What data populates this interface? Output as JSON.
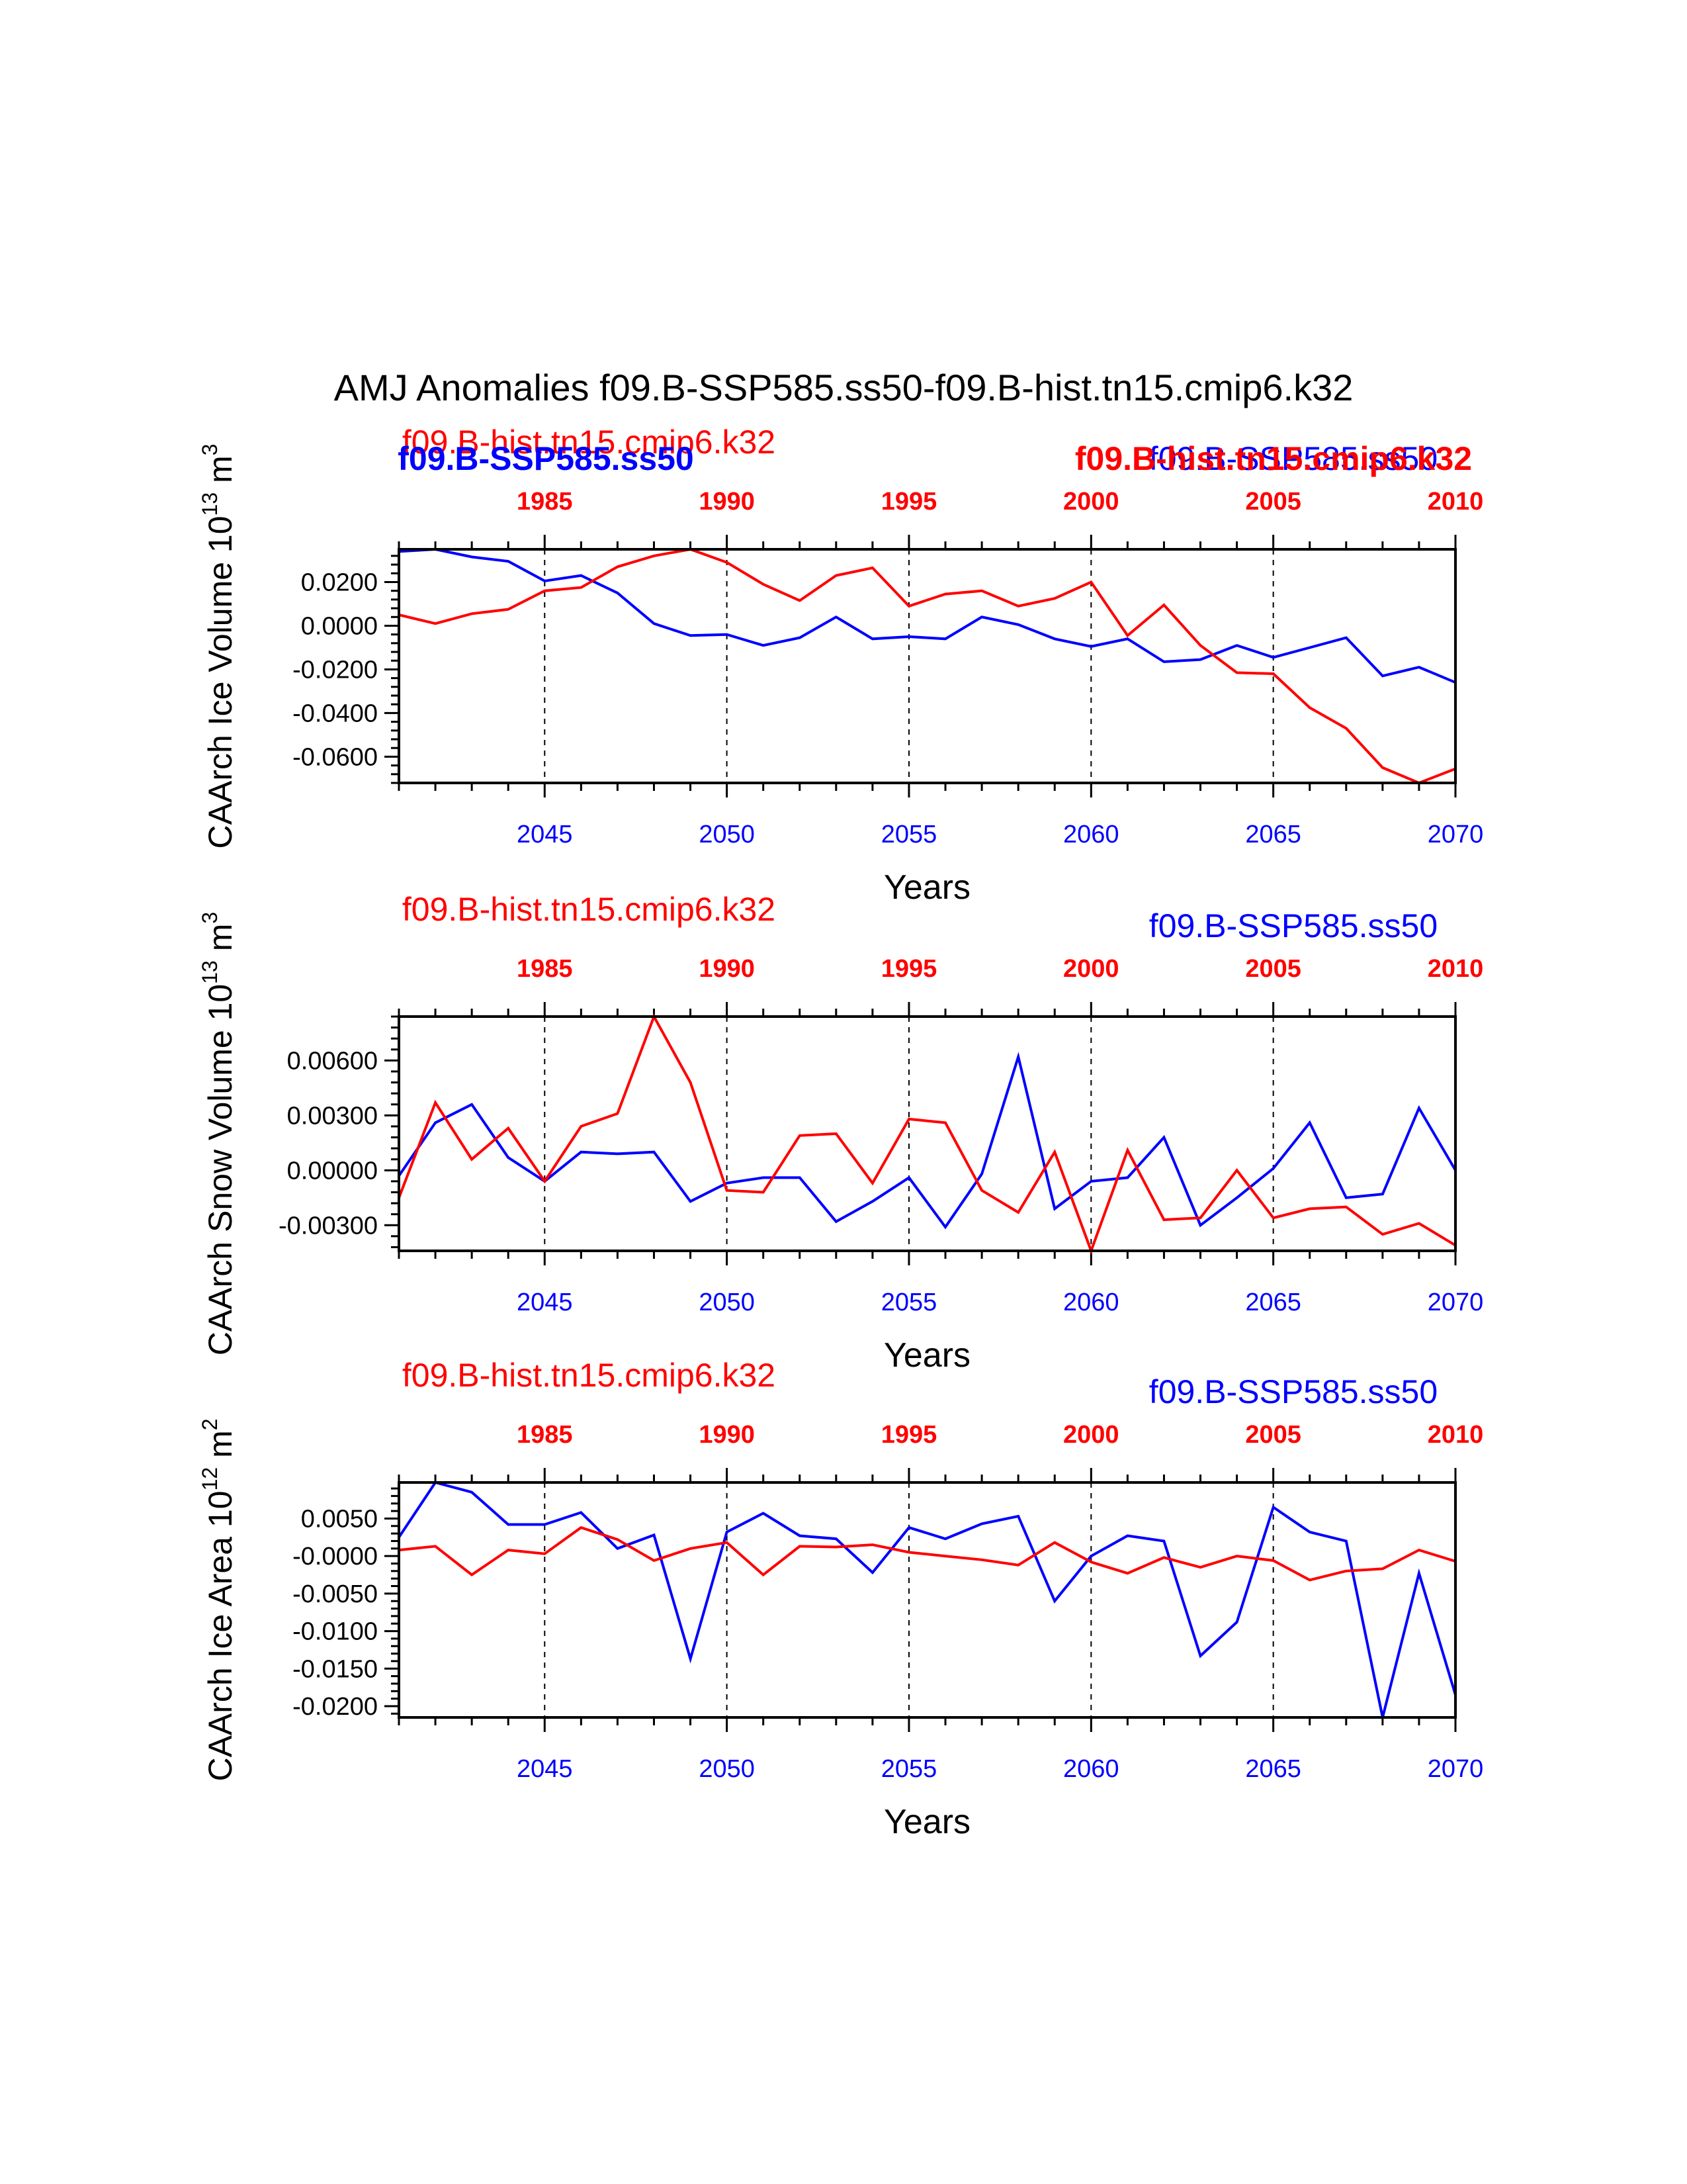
{
  "figure": {
    "title": "AMJ Anomalies f09.B-SSP585.ss50-f09.B-hist.tn15.cmip6.k32"
  },
  "colors": {
    "ssp": "#0000ff",
    "hist": "#ff0000",
    "frame": "#000000"
  },
  "chart_data": [
    {
      "type": "line",
      "ylabel": "CAArch Ice Volume 10^13 m^3",
      "ylabel_main": "CAArch Ice Volume 10",
      "ylabel_exp": "13",
      "ylabel_unit": " m",
      "ylabel_unit_exp": "3",
      "xlabel": "Years",
      "bottom_ticks": [
        "2045",
        "2050",
        "2055",
        "2060",
        "2065",
        "2070"
      ],
      "bottom_tick_values": [
        2045,
        2050,
        2055,
        2060,
        2065,
        2070
      ],
      "top_ticks": [
        "1985",
        "1990",
        "1995",
        "2000",
        "2005",
        "2010"
      ],
      "top_tick_values": [
        1985,
        1990,
        1995,
        2000,
        2005,
        2010
      ],
      "yticks": [
        "0.0200",
        "0.0000",
        "-0.0200",
        "-0.0400",
        "-0.0600"
      ],
      "ytick_values": [
        0.02,
        0.0,
        -0.02,
        -0.04,
        -0.06
      ],
      "ylim": [
        -0.072,
        0.035
      ],
      "xlim_bottom": [
        2041,
        2070
      ],
      "xlim_top": [
        1981,
        2010
      ],
      "label_hist": "f09.B-hist.tn15.cmip6.k32",
      "label_ssp": "f09.B-SSP585.ss50",
      "label_ssp_bold": "f09.B-SSP585.ss50",
      "label_hist_bold": "f09.B-hist.tn15.cmip6.k32",
      "series": [
        {
          "name": "f09.B-SSP585.ss50",
          "color": "#0000ff",
          "x": [
            2041,
            2042,
            2043,
            2044,
            2045,
            2046,
            2047,
            2048,
            2049,
            2050,
            2051,
            2052,
            2053,
            2054,
            2055,
            2056,
            2057,
            2058,
            2059,
            2060,
            2061,
            2062,
            2063,
            2064,
            2065,
            2066,
            2067,
            2068,
            2069,
            2070
          ],
          "y": [
            0.034,
            0.035,
            0.0315,
            0.0295,
            0.0205,
            0.023,
            0.015,
            0.001,
            -0.0045,
            -0.004,
            -0.009,
            -0.0055,
            0.004,
            -0.006,
            -0.005,
            -0.006,
            0.004,
            0.0005,
            -0.006,
            -0.0095,
            -0.006,
            -0.0165,
            -0.0155,
            -0.009,
            -0.0145,
            -0.01,
            -0.0055,
            -0.023,
            -0.019,
            -0.026
          ]
        },
        {
          "name": "f09.B-hist.tn15.cmip6.k32",
          "color": "#ff0000",
          "x": [
            1981,
            1982,
            1983,
            1984,
            1985,
            1986,
            1987,
            1988,
            1989,
            1990,
            1991,
            1992,
            1993,
            1994,
            1995,
            1996,
            1997,
            1998,
            1999,
            2000,
            2001,
            2002,
            2003,
            2004,
            2005,
            2006,
            2007,
            2008,
            2009,
            2010
          ],
          "y": [
            0.005,
            0.001,
            0.0055,
            0.0075,
            0.016,
            0.0175,
            0.027,
            0.032,
            0.035,
            0.029,
            0.019,
            0.0115,
            0.023,
            0.0265,
            0.009,
            0.0145,
            0.016,
            0.009,
            0.0125,
            0.02,
            -0.0045,
            0.0095,
            -0.009,
            -0.0215,
            -0.022,
            -0.0375,
            -0.047,
            -0.065,
            -0.072,
            -0.0655
          ]
        }
      ]
    },
    {
      "type": "line",
      "ylabel": "CAArch Snow Volume 10^13 m^3",
      "ylabel_main": "CAArch Snow Volume 10",
      "ylabel_exp": "13",
      "ylabel_unit": " m",
      "ylabel_unit_exp": "3",
      "xlabel": "Years",
      "bottom_ticks": [
        "2045",
        "2050",
        "2055",
        "2060",
        "2065",
        "2070"
      ],
      "bottom_tick_values": [
        2045,
        2050,
        2055,
        2060,
        2065,
        2070
      ],
      "top_ticks": [
        "1985",
        "1990",
        "1995",
        "2000",
        "2005",
        "2010"
      ],
      "top_tick_values": [
        1985,
        1990,
        1995,
        2000,
        2005,
        2010
      ],
      "yticks": [
        "0.00600",
        "0.00300",
        "0.00000",
        "-0.00300"
      ],
      "ytick_values": [
        0.006,
        0.003,
        0.0,
        -0.003
      ],
      "ylim": [
        -0.0044,
        0.0084
      ],
      "xlim_bottom": [
        2041,
        2070
      ],
      "xlim_top": [
        1981,
        2010
      ],
      "label_hist": "f09.B-hist.tn15.cmip6.k32",
      "label_ssp": "f09.B-SSP585.ss50",
      "series": [
        {
          "name": "f09.B-SSP585.ss50",
          "color": "#0000ff",
          "x": [
            2041,
            2042,
            2043,
            2044,
            2045,
            2046,
            2047,
            2048,
            2049,
            2050,
            2051,
            2052,
            2053,
            2054,
            2055,
            2056,
            2057,
            2058,
            2059,
            2060,
            2061,
            2062,
            2063,
            2064,
            2065,
            2066,
            2067,
            2068,
            2069,
            2070
          ],
          "y": [
            -0.0003,
            0.0026,
            0.0036,
            0.0007,
            -0.0006,
            0.001,
            0.0009,
            0.001,
            -0.0017,
            -0.0007,
            -0.0004,
            -0.0004,
            -0.0028,
            -0.0017,
            -0.0004,
            -0.0031,
            -0.0002,
            0.0062,
            -0.0021,
            -0.0006,
            -0.0004,
            0.0018,
            -0.003,
            -0.0015,
            0.0001,
            0.0026,
            -0.0015,
            -0.0013,
            0.0034,
            0.0
          ]
        },
        {
          "name": "f09.B-hist.tn15.cmip6.k32",
          "color": "#ff0000",
          "x": [
            1981,
            1982,
            1983,
            1984,
            1985,
            1986,
            1987,
            1988,
            1989,
            1990,
            1991,
            1992,
            1993,
            1994,
            1995,
            1996,
            1997,
            1998,
            1999,
            2000,
            2001,
            2002,
            2003,
            2004,
            2005,
            2006,
            2007,
            2008,
            2009,
            2010
          ],
          "y": [
            -0.0015,
            0.0037,
            0.0006,
            0.0023,
            -0.0006,
            0.0024,
            0.0031,
            0.0084,
            0.0048,
            -0.0011,
            -0.0012,
            0.0019,
            0.002,
            -0.0007,
            0.0028,
            0.0026,
            -0.0011,
            -0.0023,
            0.001,
            -0.0044,
            0.0011,
            -0.0027,
            -0.0026,
            0.0,
            -0.0026,
            -0.0021,
            -0.002,
            -0.0035,
            -0.0029,
            -0.0041
          ]
        }
      ]
    },
    {
      "type": "line",
      "ylabel": "CAArch Ice Area 10^12 m^2",
      "ylabel_main": "CAArch Ice Area 10",
      "ylabel_exp": "12",
      "ylabel_unit": " m",
      "ylabel_unit_exp": "2",
      "xlabel": "Years",
      "bottom_ticks": [
        "2045",
        "2050",
        "2055",
        "2060",
        "2065",
        "2070"
      ],
      "bottom_tick_values": [
        2045,
        2050,
        2055,
        2060,
        2065,
        2070
      ],
      "top_ticks": [
        "1985",
        "1990",
        "1995",
        "2000",
        "2005",
        "2010"
      ],
      "top_tick_values": [
        1985,
        1990,
        1995,
        2000,
        2005,
        2010
      ],
      "yticks": [
        "0.0050",
        "-0.0000",
        "-0.0050",
        "-0.0100",
        "-0.0150",
        "-0.0200"
      ],
      "ytick_values": [
        0.005,
        0.0,
        -0.005,
        -0.01,
        -0.015,
        -0.02
      ],
      "ylim": [
        -0.0215,
        0.0098
      ],
      "xlim_bottom": [
        2041,
        2070
      ],
      "xlim_top": [
        1981,
        2010
      ],
      "label_hist": "f09.B-hist.tn15.cmip6.k32",
      "label_ssp": "f09.B-SSP585.ss50",
      "series": [
        {
          "name": "f09.B-SSP585.ss50",
          "color": "#0000ff",
          "x": [
            2041,
            2042,
            2043,
            2044,
            2045,
            2046,
            2047,
            2048,
            2049,
            2050,
            2051,
            2052,
            2053,
            2054,
            2055,
            2056,
            2057,
            2058,
            2059,
            2060,
            2061,
            2062,
            2063,
            2064,
            2065,
            2066,
            2067,
            2068,
            2069,
            2070
          ],
          "y": [
            0.0025,
            0.0098,
            0.0085,
            0.0042,
            0.0042,
            0.0058,
            0.001,
            0.0028,
            -0.0137,
            0.0032,
            0.0057,
            0.0027,
            0.0023,
            -0.0022,
            0.0038,
            0.0023,
            0.0043,
            0.0053,
            -0.006,
            0.0,
            0.0027,
            0.002,
            -0.0133,
            -0.0088,
            0.0065,
            0.0032,
            0.002,
            -0.0215,
            -0.0023,
            -0.0185
          ]
        },
        {
          "name": "f09.B-hist.tn15.cmip6.k32",
          "color": "#ff0000",
          "x": [
            1981,
            1982,
            1983,
            1984,
            1985,
            1986,
            1987,
            1988,
            1989,
            1990,
            1991,
            1992,
            1993,
            1994,
            1995,
            1996,
            1997,
            1998,
            1999,
            2000,
            2001,
            2002,
            2003,
            2004,
            2005,
            2006,
            2007,
            2008,
            2009,
            2010
          ],
          "y": [
            0.0008,
            0.0013,
            -0.0025,
            0.0008,
            0.0003,
            0.0038,
            0.0022,
            -0.0006,
            0.001,
            0.0018,
            -0.0025,
            0.0013,
            0.0012,
            0.0015,
            0.0005,
            0.0,
            -0.0005,
            -0.0012,
            0.0018,
            -0.0008,
            -0.0023,
            -0.0002,
            -0.0015,
            0.0,
            -0.0006,
            -0.0032,
            -0.002,
            -0.0017,
            0.0008,
            -0.0007
          ]
        }
      ]
    }
  ]
}
